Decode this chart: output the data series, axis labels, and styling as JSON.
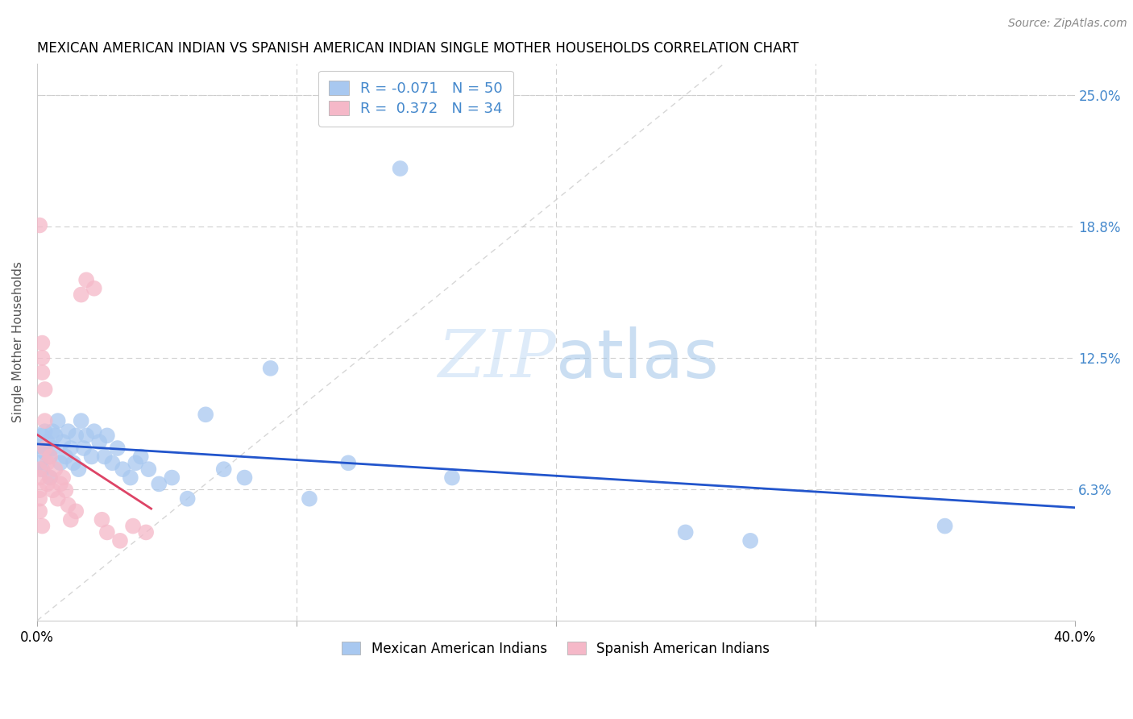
{
  "title": "MEXICAN AMERICAN INDIAN VS SPANISH AMERICAN INDIAN SINGLE MOTHER HOUSEHOLDS CORRELATION CHART",
  "source": "Source: ZipAtlas.com",
  "ylabel": "Single Mother Households",
  "xlim": [
    0.0,
    0.4
  ],
  "ylim": [
    0.0,
    0.265
  ],
  "blue_R": "-0.071",
  "blue_N": "50",
  "pink_R": "0.372",
  "pink_N": "34",
  "blue_color": "#a8c8f0",
  "pink_color": "#f5b8c8",
  "blue_line_color": "#2255cc",
  "pink_line_color": "#dd4466",
  "right_axis_color": "#4488cc",
  "watermark_zip": "ZIP",
  "watermark_atlas": "atlas",
  "legend_label_blue": "Mexican American Indians",
  "legend_label_pink": "Spanish American Indians",
  "blue_x": [
    0.001,
    0.001,
    0.002,
    0.002,
    0.003,
    0.003,
    0.004,
    0.005,
    0.005,
    0.006,
    0.006,
    0.007,
    0.008,
    0.009,
    0.01,
    0.011,
    0.012,
    0.013,
    0.014,
    0.015,
    0.016,
    0.017,
    0.018,
    0.019,
    0.021,
    0.022,
    0.024,
    0.026,
    0.027,
    0.029,
    0.031,
    0.033,
    0.036,
    0.038,
    0.04,
    0.043,
    0.047,
    0.052,
    0.058,
    0.065,
    0.072,
    0.08,
    0.09,
    0.105,
    0.12,
    0.14,
    0.16,
    0.25,
    0.35,
    0.275
  ],
  "blue_y": [
    0.083,
    0.075,
    0.088,
    0.072,
    0.09,
    0.08,
    0.085,
    0.078,
    0.068,
    0.09,
    0.082,
    0.088,
    0.095,
    0.075,
    0.085,
    0.078,
    0.09,
    0.082,
    0.075,
    0.088,
    0.072,
    0.095,
    0.082,
    0.088,
    0.078,
    0.09,
    0.085,
    0.078,
    0.088,
    0.075,
    0.082,
    0.072,
    0.068,
    0.075,
    0.078,
    0.072,
    0.065,
    0.068,
    0.058,
    0.098,
    0.072,
    0.068,
    0.12,
    0.058,
    0.075,
    0.215,
    0.068,
    0.042,
    0.045,
    0.038
  ],
  "pink_x": [
    0.001,
    0.001,
    0.001,
    0.001,
    0.002,
    0.002,
    0.002,
    0.003,
    0.003,
    0.003,
    0.004,
    0.004,
    0.005,
    0.005,
    0.006,
    0.007,
    0.008,
    0.009,
    0.01,
    0.011,
    0.012,
    0.013,
    0.015,
    0.017,
    0.019,
    0.022,
    0.025,
    0.027,
    0.032,
    0.037,
    0.042,
    0.001,
    0.001,
    0.002
  ],
  "pink_y": [
    0.188,
    0.072,
    0.068,
    0.062,
    0.132,
    0.125,
    0.118,
    0.11,
    0.095,
    0.082,
    0.075,
    0.065,
    0.078,
    0.068,
    0.062,
    0.072,
    0.058,
    0.065,
    0.068,
    0.062,
    0.055,
    0.048,
    0.052,
    0.155,
    0.162,
    0.158,
    0.048,
    0.042,
    0.038,
    0.045,
    0.042,
    0.058,
    0.052,
    0.045
  ]
}
